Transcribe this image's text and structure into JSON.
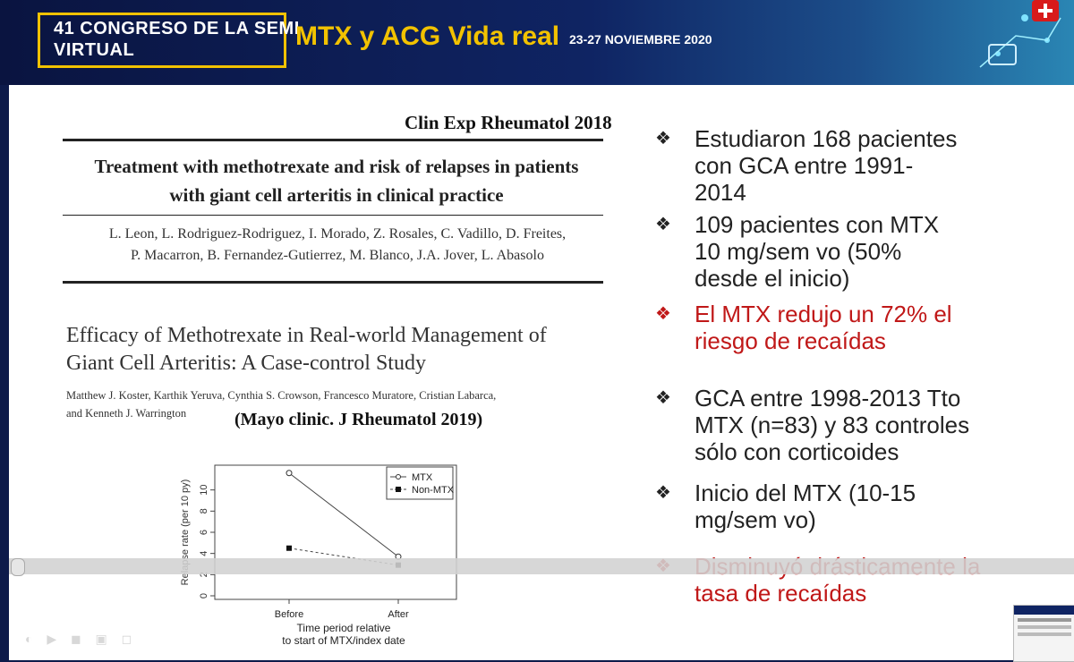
{
  "banner": {
    "congress_line1": "41 CONGRESO DE LA SEMI",
    "congress_line2": "VIRTUAL",
    "title": "MTX y ACG Vida real",
    "dates": "23-27 NOVIEMBRE 2020",
    "colors": {
      "accent": "#f2c200",
      "background": "#0f2463"
    }
  },
  "left": {
    "journal1": "Clin Exp Rheumatol 2018",
    "paper1_title_line1": "Treatment with methotrexate and risk of relapses in patients",
    "paper1_title_line2": "with giant cell arteritis in clinical practice",
    "paper1_authors_line1": "L. Leon, L. Rodriguez-Rodriguez, I. Morado, Z. Rosales, C. Vadillo, D. Freites,",
    "paper1_authors_line2": "P. Macarron, B. Fernandez-Gutierrez, M. Blanco, J.A. Jover, L. Abasolo",
    "paper2_title_line1": "Efficacy of Methotrexate in Real-world Management of",
    "paper2_title_line2": "Giant Cell Arteritis: A Case-control Study",
    "paper2_authors_line1": "Matthew J. Koster, Karthik Yeruva, Cynthia S. Crowson, Francesco Muratore, Cristian Labarca,",
    "paper2_authors_line2": "and Kenneth J. Warrington",
    "journal2": "(Mayo clinic. J Rheumatol 2019)"
  },
  "chart_data": {
    "type": "line",
    "categories": [
      "Before",
      "After"
    ],
    "series": [
      {
        "name": "MTX",
        "values": [
          11.6,
          3.7
        ],
        "style": "solid",
        "marker": "open-circle"
      },
      {
        "name": "Non-MTX",
        "values": [
          4.5,
          2.9
        ],
        "style": "dashed",
        "marker": "filled-square"
      }
    ],
    "xlabel_line1": "Time period relative",
    "xlabel_line2": "to start of MTX/index date",
    "ylabel": "Relapse rate (per 10 py)",
    "yticks": [
      "0",
      "2",
      "4",
      "6",
      "8",
      "10"
    ],
    "ylim": [
      0,
      12
    ],
    "legend": "top-right"
  },
  "bullets": [
    {
      "text": "Estudiaron 168 pacientes con GCA entre 1991-2014",
      "lines": [
        "Estudiaron 168 pacientes",
        "con GCA entre 1991-",
        "2014"
      ],
      "icon": "diamond-bullet-icon",
      "color": "#222222"
    },
    {
      "text": "109 pacientes con MTX 10 mg/sem vo (50% desde el inicio)",
      "lines": [
        "109 pacientes con MTX",
        "10 mg/sem vo (50%",
        "desde el inicio)"
      ],
      "icon": "diamond-bullet-icon",
      "color": "#222222"
    },
    {
      "text": "El MTX redujo un 72% el riesgo de recaídas",
      "lines": [
        "El MTX redujo un 72% el",
        "riesgo de recaídas"
      ],
      "icon": "diamond-bullet-icon",
      "color": "#c01818"
    },
    {
      "text": "GCA entre 1998-2013 Tto MTX (n=83) y 83 controles sólo con corticoides",
      "lines": [
        "GCA entre 1998-2013 Tto",
        "MTX (n=83) y 83 controles",
        "sólo con corticoides"
      ],
      "icon": "diamond-bullet-icon",
      "color": "#222222"
    },
    {
      "text": "Inicio del MTX (10-15 mg/sem vo)",
      "lines": [
        "Inicio del MTX (10-15",
        "mg/sem vo)"
      ],
      "icon": "diamond-bullet-icon",
      "color": "#222222"
    },
    {
      "text": "Disminuyó drásticamente la tasa de recaídas",
      "lines": [
        "Disminuyó drásticamente la",
        "tasa de recaídas"
      ],
      "icon": "diamond-bullet-icon",
      "color": "#c01818"
    }
  ]
}
